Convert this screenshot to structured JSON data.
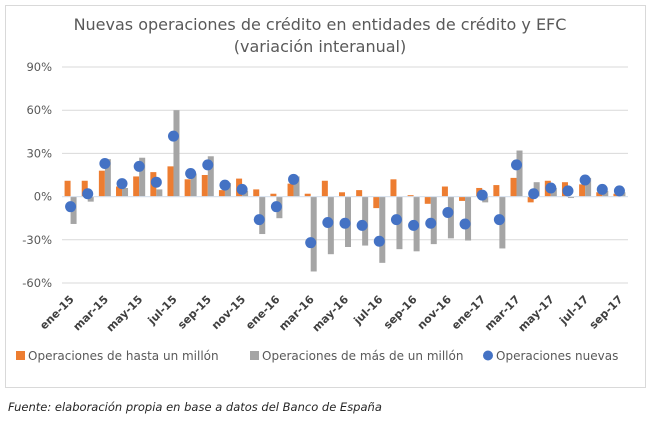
{
  "chart_data": {
    "type": "bar",
    "title": "Nuevas operaciones de crédito en entidades de crédito y EFC",
    "subtitle": "(variación interanual)",
    "xlabel": "",
    "ylabel": "",
    "ylim": [
      -60,
      90
    ],
    "yticks": [
      "90%",
      "60%",
      "30%",
      "0%",
      "-30%",
      "-60%"
    ],
    "ytick_values": [
      90,
      60,
      30,
      0,
      -30,
      -60
    ],
    "grid": true,
    "legend_position": "bottom",
    "categories": [
      "ene-15",
      "feb-15",
      "mar-15",
      "abr-15",
      "may-15",
      "jun-15",
      "jul-15",
      "ago-15",
      "sep-15",
      "oct-15",
      "nov-15",
      "dic-15",
      "ene-16",
      "feb-16",
      "mar-16",
      "abr-16",
      "may-16",
      "jun-16",
      "jul-16",
      "ago-16",
      "sep-16",
      "oct-16",
      "nov-16",
      "dic-16",
      "ene-17",
      "feb-17",
      "mar-17",
      "abr-17",
      "may-17",
      "jun-17",
      "jul-17",
      "ago-17",
      "sep-17"
    ],
    "x_tick_labels": [
      "ene-15",
      "mar-15",
      "may-15",
      "jul-15",
      "sep-15",
      "nov-15",
      "ene-16",
      "mar-16",
      "may-16",
      "jul-16",
      "sep-16",
      "nov-16",
      "ene-17",
      "mar-17",
      "may-17",
      "jul-17",
      "sep-17"
    ],
    "series": [
      {
        "name": "Operaciones de hasta un millón",
        "kind": "bar",
        "color": "#ED7D31",
        "values": [
          11,
          11,
          18,
          7,
          14,
          17,
          21,
          12,
          15,
          4.5,
          12.5,
          5,
          2,
          9,
          2,
          11,
          3,
          4.5,
          -8,
          12,
          1,
          -5,
          7,
          -3,
          6,
          8,
          13,
          -4,
          11,
          10,
          8.5,
          3,
          2
        ]
      },
      {
        "name": "Operaciones de más de un millón",
        "kind": "bar",
        "color": "#A5A5A5",
        "values": [
          -19,
          -3.5,
          26,
          6,
          27,
          5,
          60,
          16,
          28,
          9.5,
          4,
          -26,
          -15,
          14,
          -52,
          -40,
          -35,
          -34,
          -46,
          -36.5,
          -38,
          -33,
          -29,
          -30.5,
          -4,
          -36,
          32,
          10,
          6,
          -1,
          13,
          4,
          3
        ]
      },
      {
        "name": "Operaciones nuevas",
        "kind": "marker",
        "color": "#4472C4",
        "values": [
          -7,
          2,
          23,
          9,
          21,
          10,
          42,
          16,
          22,
          8,
          5,
          -16,
          -7,
          12,
          -32,
          -18,
          -18.5,
          -20,
          -31,
          -16,
          -20,
          -18.5,
          -11,
          -19,
          1,
          -16,
          22,
          2,
          6,
          4,
          11.5,
          5,
          4
        ]
      }
    ]
  },
  "source_note": "Fuente: elaboración propia en base a datos del Banco de España"
}
